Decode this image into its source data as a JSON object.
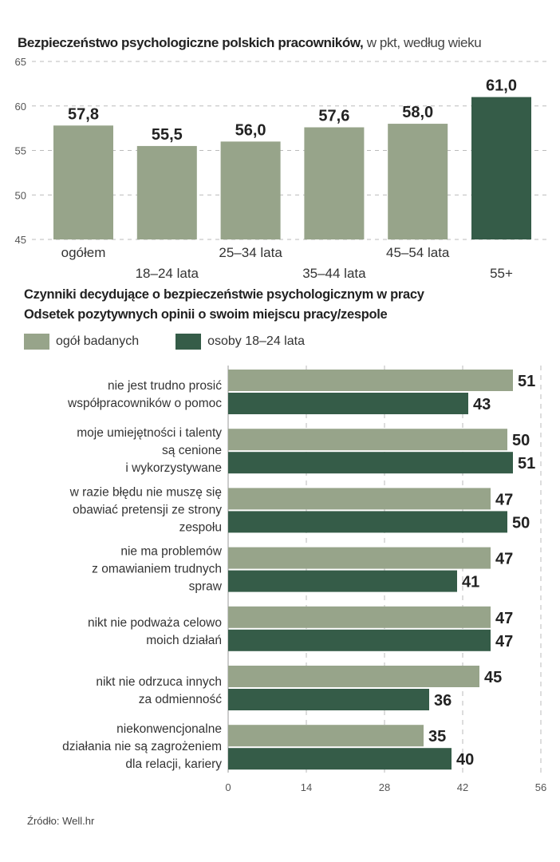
{
  "colors": {
    "light": "#97a48a",
    "dark": "#355c48"
  },
  "chart_data": [
    {
      "type": "bar",
      "title": "Bezpieczeństwo psychologiczne polskich pracowników,",
      "subtitle": "w pkt, według wieku",
      "categories": [
        "ogółem",
        "18–24 lata",
        "25–34 lata",
        "35–44 lata",
        "45–54 lata",
        "55+"
      ],
      "values": [
        57.8,
        55.5,
        56.0,
        57.6,
        58.0,
        61.0
      ],
      "value_labels": [
        "57,8",
        "55,5",
        "56,0",
        "57,6",
        "58,0",
        "61,0"
      ],
      "highlight_index": 5,
      "ylim": [
        45,
        65
      ],
      "yticks": [
        45,
        50,
        55,
        60,
        65
      ],
      "grid": true
    },
    {
      "type": "bar",
      "orientation": "horizontal",
      "title": "Czynniki decydujące o bezpieczeństwie psychologicznym w pracy",
      "subtitle": "Odsetek pozytywnych opinii o swoim miejscu pracy/zespole",
      "legend_position": "top-left",
      "categories": [
        "nie jest trudno prosić\nwspółpracowników o pomoc",
        "moje umiejętności i talenty\nsą cenione\ni wykorzystywane",
        "w razie błędu nie muszę się\nobawiać pretensji ze strony\nzespołu",
        "nie ma problemów\nz omawianiem trudnych\nspraw",
        "nikt nie podważa celowo\nmoich działań",
        "nikt nie odrzuca innych\nza odmienność",
        "niekonwencjonalne\ndziałania nie są zagrożeniem\ndla relacji, kariery"
      ],
      "series": [
        {
          "name": "ogół badanych",
          "values": [
            51,
            50,
            47,
            47,
            47,
            45,
            35
          ]
        },
        {
          "name": "osoby 18–24 lata",
          "values": [
            43,
            51,
            50,
            41,
            47,
            36,
            40
          ]
        }
      ],
      "xlim": [
        0,
        56
      ],
      "xticks": [
        0,
        14,
        28,
        42,
        56
      ],
      "grid": true
    }
  ],
  "source": "Źródło: Well.hr"
}
